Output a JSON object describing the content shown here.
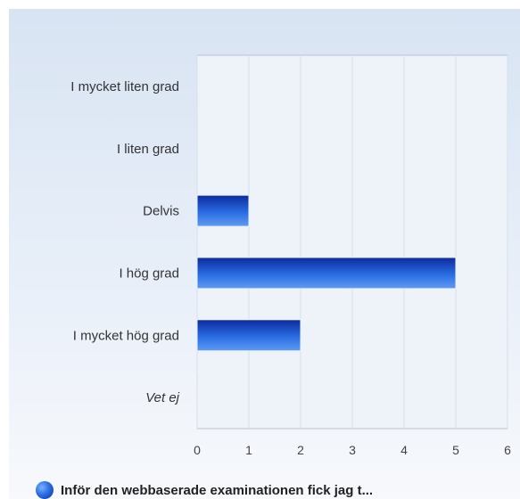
{
  "chart_data": {
    "type": "bar",
    "orientation": "horizontal",
    "categories": [
      "I mycket liten grad",
      "I liten grad",
      "Delvis",
      "I hög grad",
      "I mycket hög grad",
      "Vet ej"
    ],
    "italic_categories": [
      "Vet ej"
    ],
    "series": [
      {
        "name": "Inför den webbaserade examinationen fick jag t...",
        "values": [
          0,
          0,
          1,
          5,
          2,
          0
        ]
      }
    ],
    "xlim": [
      0,
      6
    ],
    "xticks": [
      0,
      1,
      2,
      3,
      4,
      5,
      6
    ],
    "grid": true,
    "legend_position": "bottom-left",
    "title": "",
    "xlabel": "",
    "ylabel": ""
  },
  "colors": {
    "bar_dark": "#0c2a9e",
    "bar_mid": "#2a6de2",
    "bar_light": "#5f9bf2",
    "grid": "#d7dfe9",
    "axis": "#b9c3cf"
  },
  "legend": {
    "label": "Inför den webbaserade examinationen fick jag t...",
    "icon": "blue-circle-icon"
  }
}
